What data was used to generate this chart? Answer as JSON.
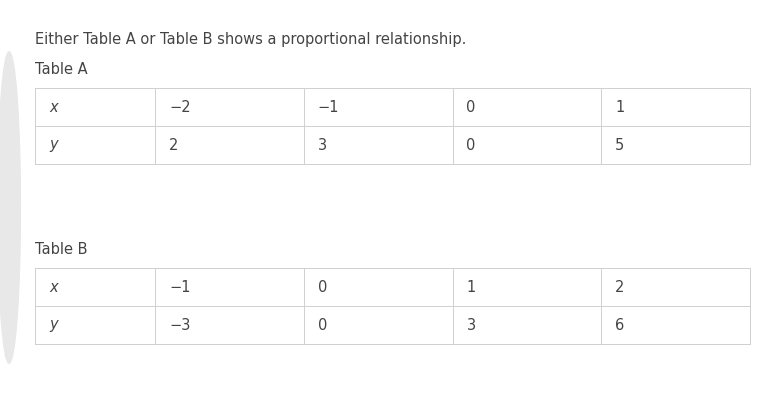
{
  "title": "Either Table A or Table B shows a proportional relationship.",
  "table_a_label": "Table A",
  "table_b_label": "Table B",
  "table_a_headers": [
    "x",
    "−2",
    "−1",
    "0",
    "1"
  ],
  "table_a_row2": [
    "y",
    "2",
    "3",
    "0",
    "5"
  ],
  "table_b_headers": [
    "x",
    "−1",
    "0",
    "1",
    "2"
  ],
  "table_b_row2": [
    "y",
    "−3",
    "0",
    "3",
    "6"
  ],
  "bg_color": "#ffffff",
  "text_color": "#444444",
  "border_color": "#d0d0d0",
  "accent_color": "#e8e8e8",
  "title_fontsize": 10.5,
  "label_fontsize": 10.5,
  "cell_fontsize": 10.5,
  "fig_width": 7.57,
  "fig_height": 4.15,
  "dpi": 100
}
